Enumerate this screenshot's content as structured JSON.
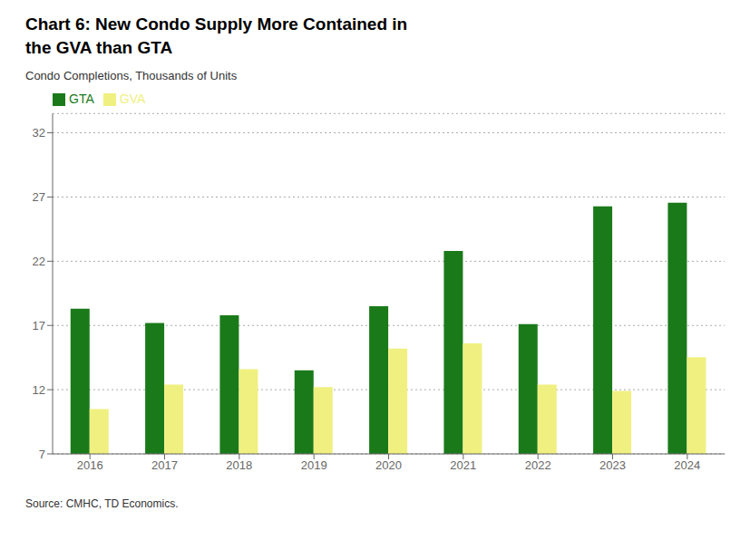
{
  "chart_data": {
    "type": "bar",
    "title": "Chart 6: New Condo Supply More Contained in\nthe GVA than GTA",
    "ylabel": "Condo Completions, Thousands of Units",
    "annotations": [
      "Source: CMHC, TD Economics."
    ],
    "categories": [
      "2016",
      "2017",
      "2018",
      "2019",
      "2020",
      "2021",
      "2022",
      "2023",
      "2024"
    ],
    "series": [
      {
        "name": "GTA",
        "color": "#1a7a1a",
        "values": [
          18.3,
          17.2,
          17.8,
          13.5,
          18.5,
          22.8,
          17.1,
          26.278,
          26.56
        ]
      },
      {
        "name": "GVA",
        "color": "#f0f080",
        "values": [
          10.5,
          12.4,
          13.6,
          12.2,
          15.2,
          15.6,
          12.4,
          11.9,
          14.536
        ]
      }
    ],
    "ylim": [
      7,
      33.5
    ],
    "yticks": [
      7,
      12,
      17,
      22,
      27,
      32
    ],
    "grid": true,
    "legend": "upper left"
  }
}
